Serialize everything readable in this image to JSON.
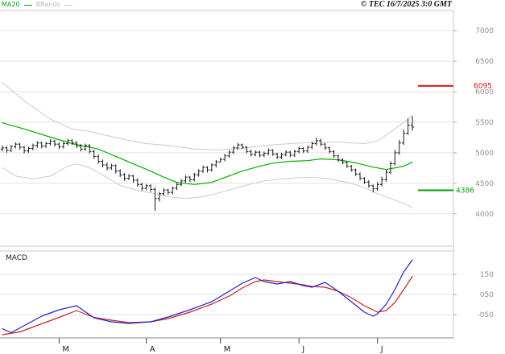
{
  "header": {
    "legend_ma20": "MA20",
    "legend_bbands": "BBands",
    "copyright": "© TEC 16/7/2025 3:0 GMT"
  },
  "chart_data": [
    {
      "type": "candlestick",
      "name": "price-panel",
      "title": "",
      "ylim": [
        3470,
        7330
      ],
      "yticks": [
        7000,
        6500,
        6000,
        5500,
        5000,
        4500,
        4000
      ],
      "grid": true,
      "x_ticks": [
        {
          "index": 13,
          "label": "M"
        },
        {
          "index": 33,
          "label": "A"
        },
        {
          "index": 50,
          "label": "M"
        },
        {
          "index": 68,
          "label": "J"
        },
        {
          "index": 86,
          "label": "J"
        }
      ],
      "markers": [
        {
          "value": 6095,
          "label": "6095",
          "color": "#cc1111"
        },
        {
          "value": 4386,
          "label": "4386",
          "color": "#00a000"
        }
      ],
      "colors": {
        "bar": "#161616",
        "grid": "#e2e2e2",
        "axis_text": "#8f8f8f",
        "ma20": "#00b000",
        "bbands": "#c9c9c9",
        "border": "#c8c8c8",
        "time_axis": "#888888"
      },
      "overlays": {
        "ma20": {
          "label": "MA20",
          "color": "#00b000",
          "points": [
            [
              0,
              5490
            ],
            [
              5,
              5390
            ],
            [
              11,
              5255
            ],
            [
              16,
              5150
            ],
            [
              22,
              5060
            ],
            [
              27,
              4910
            ],
            [
              33,
              4730
            ],
            [
              37,
              4600
            ],
            [
              40,
              4515
            ],
            [
              44,
              4480
            ],
            [
              48,
              4515
            ],
            [
              51,
              4595
            ],
            [
              55,
              4700
            ],
            [
              59,
              4780
            ],
            [
              62,
              4830
            ],
            [
              66,
              4860
            ],
            [
              70,
              4870
            ],
            [
              73,
              4900
            ],
            [
              77,
              4885
            ],
            [
              81,
              4835
            ],
            [
              85,
              4765
            ],
            [
              88,
              4725
            ],
            [
              92,
              4780
            ],
            [
              94,
              4845
            ]
          ]
        },
        "bb_upper": {
          "label": "BBands upper",
          "color": "#c9c9c9",
          "points": [
            [
              0,
              6150
            ],
            [
              5,
              5850
            ],
            [
              11,
              5550
            ],
            [
              16,
              5390
            ],
            [
              20,
              5350
            ],
            [
              27,
              5230
            ],
            [
              33,
              5150
            ],
            [
              38,
              5120
            ],
            [
              44,
              5060
            ],
            [
              49,
              5045
            ],
            [
              55,
              5070
            ],
            [
              60,
              5120
            ],
            [
              66,
              5150
            ],
            [
              72,
              5175
            ],
            [
              77,
              5175
            ],
            [
              83,
              5150
            ],
            [
              86,
              5190
            ],
            [
              90,
              5390
            ],
            [
              93,
              5550
            ],
            [
              94,
              5610
            ]
          ]
        },
        "bb_lower": {
          "label": "BBands lower",
          "color": "#c9c9c9",
          "points": [
            [
              0,
              4755
            ],
            [
              3,
              4620
            ],
            [
              7,
              4570
            ],
            [
              11,
              4620
            ],
            [
              15,
              4780
            ],
            [
              17,
              4820
            ],
            [
              20,
              4755
            ],
            [
              24,
              4595
            ],
            [
              27,
              4465
            ],
            [
              31,
              4385
            ],
            [
              35,
              4330
            ],
            [
              38,
              4280
            ],
            [
              42,
              4250
            ],
            [
              46,
              4280
            ],
            [
              49,
              4330
            ],
            [
              53,
              4410
            ],
            [
              57,
              4490
            ],
            [
              60,
              4540
            ],
            [
              64,
              4570
            ],
            [
              68,
              4595
            ],
            [
              72,
              4595
            ],
            [
              75,
              4570
            ],
            [
              79,
              4515
            ],
            [
              83,
              4435
            ],
            [
              86,
              4330
            ],
            [
              90,
              4225
            ],
            [
              93,
              4145
            ],
            [
              94,
              4095
            ]
          ]
        }
      },
      "ohlc": [
        [
          5060,
          5120,
          5020,
          5080
        ],
        [
          5080,
          5110,
          5000,
          5040
        ],
        [
          5040,
          5130,
          5010,
          5100
        ],
        [
          5100,
          5170,
          5070,
          5140
        ],
        [
          5140,
          5160,
          5050,
          5090
        ],
        [
          5090,
          5110,
          4990,
          5030
        ],
        [
          5030,
          5100,
          5000,
          5070
        ],
        [
          5070,
          5150,
          5040,
          5120
        ],
        [
          5120,
          5190,
          5080,
          5160
        ],
        [
          5160,
          5180,
          5070,
          5110
        ],
        [
          5110,
          5180,
          5080,
          5150
        ],
        [
          5150,
          5220,
          5120,
          5190
        ],
        [
          5190,
          5210,
          5100,
          5140
        ],
        [
          5140,
          5170,
          5060,
          5100
        ],
        [
          5100,
          5180,
          5070,
          5150
        ],
        [
          5150,
          5230,
          5120,
          5200
        ],
        [
          5200,
          5220,
          5130,
          5160
        ],
        [
          5160,
          5190,
          5080,
          5110
        ],
        [
          5110,
          5140,
          5020,
          5060
        ],
        [
          5060,
          5150,
          5030,
          5120
        ],
        [
          5120,
          5140,
          4990,
          5020
        ],
        [
          5020,
          5050,
          4900,
          4940
        ],
        [
          4940,
          4970,
          4820,
          4860
        ],
        [
          4860,
          4890,
          4760,
          4800
        ],
        [
          4800,
          4840,
          4710,
          4750
        ],
        [
          4750,
          4820,
          4720,
          4790
        ],
        [
          4790,
          4810,
          4660,
          4700
        ],
        [
          4700,
          4730,
          4600,
          4640
        ],
        [
          4640,
          4670,
          4540,
          4580
        ],
        [
          4580,
          4650,
          4550,
          4620
        ],
        [
          4620,
          4640,
          4510,
          4550
        ],
        [
          4550,
          4580,
          4440,
          4480
        ],
        [
          4480,
          4510,
          4380,
          4420
        ],
        [
          4420,
          4490,
          4390,
          4460
        ],
        [
          4460,
          4480,
          4360,
          4400
        ],
        [
          4400,
          4430,
          4050,
          4250
        ],
        [
          4250,
          4360,
          4200,
          4330
        ],
        [
          4330,
          4420,
          4300,
          4390
        ],
        [
          4390,
          4410,
          4310,
          4350
        ],
        [
          4350,
          4450,
          4320,
          4420
        ],
        [
          4420,
          4510,
          4390,
          4480
        ],
        [
          4480,
          4570,
          4450,
          4540
        ],
        [
          4540,
          4630,
          4510,
          4600
        ],
        [
          4600,
          4620,
          4520,
          4560
        ],
        [
          4560,
          4670,
          4530,
          4640
        ],
        [
          4640,
          4730,
          4610,
          4700
        ],
        [
          4700,
          4790,
          4670,
          4760
        ],
        [
          4760,
          4780,
          4680,
          4720
        ],
        [
          4720,
          4830,
          4690,
          4800
        ],
        [
          4800,
          4880,
          4760,
          4850
        ],
        [
          4850,
          4920,
          4840,
          4890
        ],
        [
          4890,
          4980,
          4860,
          4950
        ],
        [
          4950,
          5040,
          4920,
          5010
        ],
        [
          5010,
          5110,
          4980,
          5080
        ],
        [
          5080,
          5160,
          5050,
          5130
        ],
        [
          5130,
          5150,
          5060,
          5090
        ],
        [
          5090,
          5110,
          4990,
          5020
        ],
        [
          5020,
          5050,
          4940,
          4970
        ],
        [
          4970,
          5040,
          4940,
          5010
        ],
        [
          5010,
          5030,
          4930,
          4960
        ],
        [
          4960,
          5020,
          4930,
          4990
        ],
        [
          4990,
          5070,
          4960,
          5040
        ],
        [
          5040,
          5060,
          4950,
          4980
        ],
        [
          4980,
          5000,
          4900,
          4930
        ],
        [
          4930,
          5000,
          4900,
          4970
        ],
        [
          4970,
          5040,
          4940,
          5010
        ],
        [
          5010,
          5030,
          4930,
          4960
        ],
        [
          4960,
          5050,
          4930,
          5020
        ],
        [
          5020,
          5100,
          4990,
          5070
        ],
        [
          5070,
          5090,
          5000,
          5030
        ],
        [
          5030,
          5120,
          5000,
          5090
        ],
        [
          5090,
          5180,
          5060,
          5150
        ],
        [
          5150,
          5250,
          5120,
          5200
        ],
        [
          5200,
          5230,
          5110,
          5140
        ],
        [
          5140,
          5160,
          5050,
          5080
        ],
        [
          5080,
          5100,
          4990,
          5020
        ],
        [
          5020,
          5040,
          4920,
          4950
        ],
        [
          4950,
          4970,
          4850,
          4880
        ],
        [
          4880,
          4910,
          4810,
          4840
        ],
        [
          4840,
          4860,
          4750,
          4780
        ],
        [
          4780,
          4800,
          4690,
          4720
        ],
        [
          4720,
          4740,
          4620,
          4650
        ],
        [
          4650,
          4680,
          4550,
          4580
        ],
        [
          4580,
          4600,
          4490,
          4520
        ],
        [
          4520,
          4550,
          4430,
          4460
        ],
        [
          4460,
          4480,
          4350,
          4410
        ],
        [
          4410,
          4520,
          4380,
          4480
        ],
        [
          4480,
          4610,
          4450,
          4560
        ],
        [
          4560,
          4720,
          4530,
          4680
        ],
        [
          4680,
          4860,
          4650,
          4820
        ],
        [
          4820,
          5050,
          4790,
          5000
        ],
        [
          5000,
          5210,
          4970,
          5160
        ],
        [
          5160,
          5380,
          5130,
          5320
        ],
        [
          5320,
          5560,
          5290,
          5450
        ],
        [
          5450,
          5600,
          5360,
          5420
        ]
      ]
    },
    {
      "type": "line",
      "name": "macd-panel",
      "label": "MACD",
      "ylim": [
        -166,
        266
      ],
      "yticks": [
        {
          "value": 150,
          "label": "150"
        },
        {
          "value": 50,
          "label": "050"
        },
        {
          "value": -50,
          "label": "-050"
        }
      ],
      "series": [
        {
          "name": "macd",
          "color": "#2222c8",
          "points": [
            [
              0,
              -120
            ],
            [
              2,
              -140
            ],
            [
              9,
              -58
            ],
            [
              13,
              -26
            ],
            [
              17,
              -6
            ],
            [
              21,
              -66
            ],
            [
              25,
              -86
            ],
            [
              29,
              -94
            ],
            [
              34,
              -86
            ],
            [
              38,
              -62
            ],
            [
              43,
              -26
            ],
            [
              48,
              14
            ],
            [
              52,
              66
            ],
            [
              55,
              106
            ],
            [
              58,
              134
            ],
            [
              60,
              114
            ],
            [
              63,
              102
            ],
            [
              66,
              114
            ],
            [
              69,
              94
            ],
            [
              71,
              86
            ],
            [
              74,
              110
            ],
            [
              77,
              66
            ],
            [
              80,
              14
            ],
            [
              83,
              -38
            ],
            [
              85,
              -58
            ],
            [
              86,
              -46
            ],
            [
              88,
              2
            ],
            [
              90,
              74
            ],
            [
              92,
              162
            ],
            [
              94,
              222
            ]
          ]
        },
        {
          "name": "signal",
          "color": "#c82222",
          "points": [
            [
              0,
              -150
            ],
            [
              4,
              -136
            ],
            [
              9,
              -96
            ],
            [
              13,
              -64
            ],
            [
              17,
              -30
            ],
            [
              21,
              -64
            ],
            [
              25,
              -78
            ],
            [
              29,
              -90
            ],
            [
              34,
              -86
            ],
            [
              38,
              -70
            ],
            [
              43,
              -38
            ],
            [
              48,
              2
            ],
            [
              52,
              42
            ],
            [
              55,
              82
            ],
            [
              58,
              114
            ],
            [
              60,
              122
            ],
            [
              63,
              114
            ],
            [
              66,
              106
            ],
            [
              69,
              98
            ],
            [
              71,
              90
            ],
            [
              74,
              86
            ],
            [
              77,
              66
            ],
            [
              80,
              34
            ],
            [
              83,
              -6
            ],
            [
              86,
              -38
            ],
            [
              88,
              -30
            ],
            [
              90,
              10
            ],
            [
              92,
              74
            ],
            [
              94,
              140
            ]
          ]
        }
      ]
    }
  ]
}
